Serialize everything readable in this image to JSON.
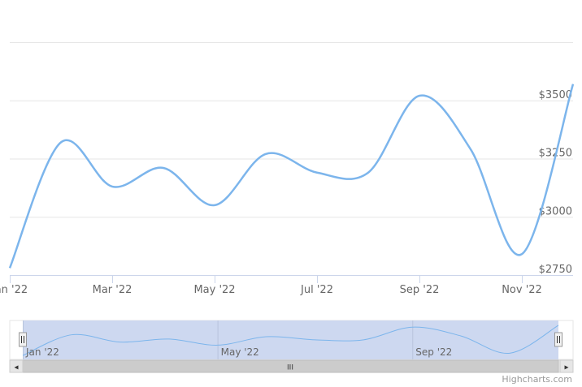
{
  "chart_data": {
    "type": "line",
    "title": "",
    "xlabel": "",
    "ylabel": "",
    "x": [
      "2022-01",
      "2022-02",
      "2022-03",
      "2022-04",
      "2022-05",
      "2022-06",
      "2022-07",
      "2022-08",
      "2022-09",
      "2022-10",
      "2022-11",
      "2022-12"
    ],
    "series": [
      {
        "values": [
          2780,
          3320,
          3130,
          3210,
          3050,
          3270,
          3190,
          3190,
          3520,
          3290,
          2840,
          3570
        ]
      }
    ],
    "y_ticks": [
      "$2750",
      "$3000",
      "$3250",
      "$3500"
    ],
    "x_ticks": [
      "Jan '22",
      "Mar '22",
      "May '22",
      "Jul '22",
      "Sep '22",
      "Nov '22"
    ],
    "ylim": [
      2750,
      3750
    ],
    "grid": true,
    "line_color": "#7cb5ec",
    "navigator": {
      "labels": [
        "Jan '22",
        "May '22",
        "Sep '22"
      ],
      "mask_color": "#cdd8f0",
      "scrollbar_grip": "III",
      "left_arrow": "◂",
      "right_arrow": "▸"
    },
    "credits": "Highcharts.com"
  }
}
